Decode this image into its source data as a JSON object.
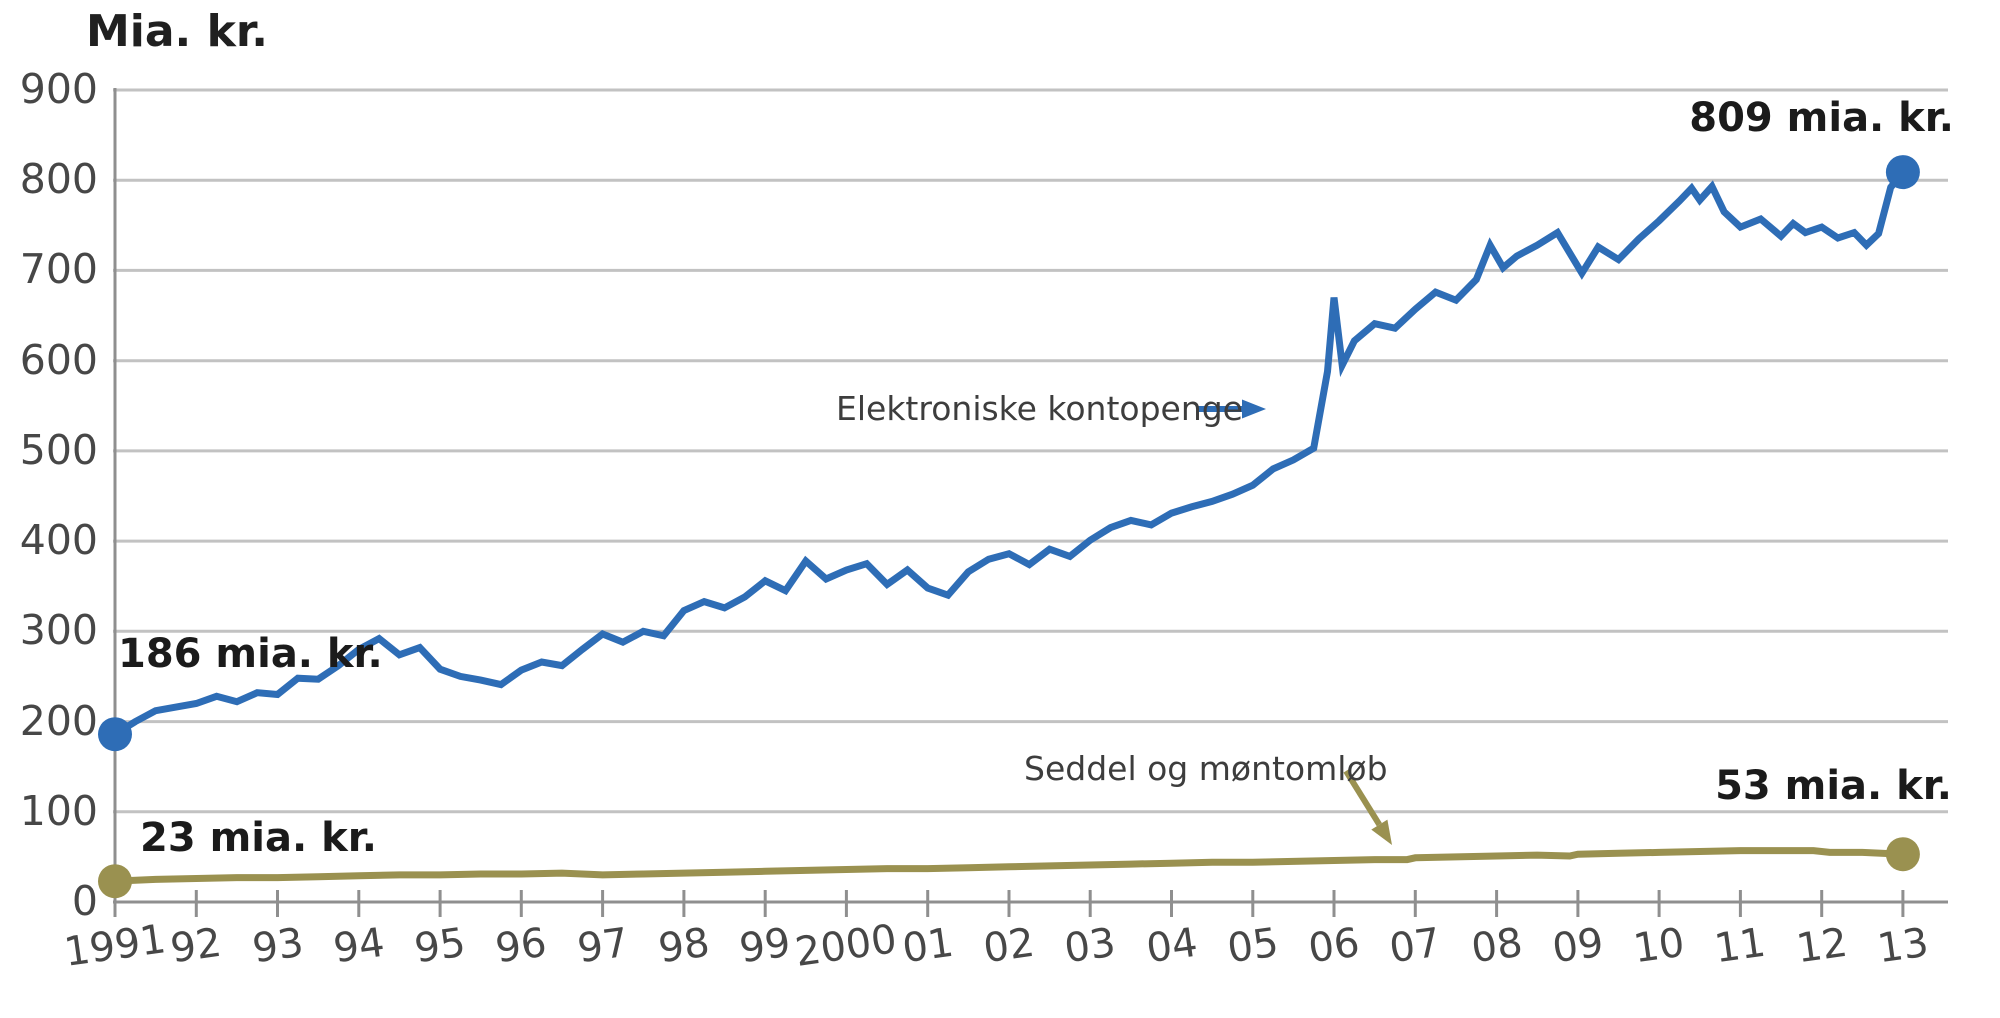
{
  "chart_data": {
    "type": "line",
    "title": "Mia. kr.",
    "ylabel": "Mia. kr.",
    "xlabel": "",
    "ylim": [
      0,
      900
    ],
    "grid": true,
    "legend_position": "inline-annotations",
    "yticks": [
      0,
      100,
      200,
      300,
      400,
      500,
      600,
      700,
      800,
      900
    ],
    "xticks": [
      {
        "label": "1991",
        "year": 1991
      },
      {
        "label": "92",
        "year": 1992
      },
      {
        "label": "93",
        "year": 1993
      },
      {
        "label": "94",
        "year": 1994
      },
      {
        "label": "95",
        "year": 1995
      },
      {
        "label": "96",
        "year": 1996
      },
      {
        "label": "97",
        "year": 1997
      },
      {
        "label": "98",
        "year": 1998
      },
      {
        "label": "99",
        "year": 1999
      },
      {
        "label": "2000",
        "year": 2000
      },
      {
        "label": "01",
        "year": 2001
      },
      {
        "label": "02",
        "year": 2002
      },
      {
        "label": "03",
        "year": 2003
      },
      {
        "label": "04",
        "year": 2004
      },
      {
        "label": "05",
        "year": 2005
      },
      {
        "label": "06",
        "year": 2006
      },
      {
        "label": "07",
        "year": 2007
      },
      {
        "label": "08",
        "year": 2008
      },
      {
        "label": "09",
        "year": 2009
      },
      {
        "label": "10",
        "year": 2010
      },
      {
        "label": "11",
        "year": 2011
      },
      {
        "label": "12",
        "year": 2012
      },
      {
        "label": "13",
        "year": 2013
      }
    ],
    "annotations": {
      "blue_start": "186 mia. kr.",
      "blue_end": "809 mia. kr.",
      "olive_start": "23 mia. kr.",
      "olive_end": "53 mia. kr.",
      "blue_series_label": "Elektroniske kontopenge",
      "olive_series_label": "Seddel og møntomløb"
    },
    "colors": {
      "blue": "#2e6db6",
      "olive": "#9a9150",
      "grid": "#c2c2c2",
      "axis": "#8f8f8f",
      "tick_text": "#474747",
      "annotation_text": "#1b1b1b"
    },
    "series": [
      {
        "id": "elektroniske-kontopenge",
        "name": "Elektroniske kontopenge",
        "color": "#2e6db6",
        "start_value": 186,
        "end_value": 809,
        "x": [
          1991,
          1991.25,
          1991.5,
          1991.75,
          1992,
          1992.25,
          1992.5,
          1992.75,
          1993,
          1993.25,
          1993.5,
          1993.75,
          1994,
          1994.25,
          1994.5,
          1994.75,
          1995,
          1995.25,
          1995.5,
          1995.75,
          1996,
          1996.25,
          1996.5,
          1996.75,
          1997,
          1997.25,
          1997.5,
          1997.75,
          1998,
          1998.25,
          1998.5,
          1998.75,
          1999,
          1999.25,
          1999.5,
          1999.75,
          2000,
          2000.25,
          2000.5,
          2000.75,
          2001,
          2001.25,
          2001.5,
          2001.75,
          2002,
          2002.25,
          2002.5,
          2002.75,
          2003,
          2003.25,
          2003.5,
          2003.75,
          2004,
          2004.25,
          2004.5,
          2004.75,
          2005,
          2005.25,
          2005.5,
          2005.75,
          2005.92,
          2006,
          2006.1,
          2006.25,
          2006.5,
          2006.75,
          2007,
          2007.25,
          2007.5,
          2007.75,
          2007.92,
          2008.08,
          2008.25,
          2008.5,
          2008.75,
          2009.05,
          2009.25,
          2009.5,
          2009.75,
          2010,
          2010.25,
          2010.4,
          2010.5,
          2010.65,
          2010.8,
          2011,
          2011.25,
          2011.5,
          2011.65,
          2011.8,
          2012,
          2012.2,
          2012.4,
          2012.55,
          2012.7,
          2012.85,
          2013
        ],
        "values": [
          186,
          200,
          212,
          216,
          220,
          228,
          222,
          232,
          230,
          248,
          247,
          262,
          280,
          292,
          274,
          282,
          258,
          250,
          246,
          241,
          257,
          266,
          262,
          280,
          297,
          288,
          300,
          295,
          323,
          333,
          326,
          338,
          356,
          345,
          378,
          358,
          368,
          375,
          352,
          368,
          348,
          340,
          366,
          380,
          386,
          374,
          391,
          383,
          401,
          415,
          423,
          418,
          431,
          438,
          444,
          452,
          462,
          480,
          490,
          503,
          588,
          670,
          595,
          622,
          641,
          636,
          657,
          676,
          667,
          690,
          728,
          703,
          716,
          728,
          742,
          697,
          726,
          712,
          735,
          755,
          777,
          791,
          778,
          793,
          765,
          748,
          757,
          738,
          752,
          742,
          748,
          736,
          742,
          728,
          741,
          792,
          809
        ]
      },
      {
        "id": "seddel-og-montomlob",
        "name": "Seddel og møntomløb",
        "color": "#9a9150",
        "start_value": 23,
        "end_value": 53,
        "x": [
          1991,
          1991.5,
          1992,
          1992.5,
          1993,
          1993.5,
          1994,
          1994.5,
          1995,
          1995.5,
          1996,
          1996.5,
          1997,
          1997.5,
          1998,
          1998.5,
          1999,
          1999.5,
          2000,
          2000.5,
          2001,
          2001.5,
          2002,
          2002.5,
          2003,
          2003.5,
          2004,
          2004.5,
          2005,
          2005.5,
          2006,
          2006.5,
          2006.9,
          2007,
          2007.5,
          2008,
          2008.5,
          2008.9,
          2009,
          2009.5,
          2010,
          2010.5,
          2011,
          2011.5,
          2011.9,
          2012.1,
          2012.5,
          2013
        ],
        "values": [
          23,
          25,
          26,
          27,
          27,
          28,
          29,
          30,
          30,
          31,
          31,
          32,
          30,
          31,
          32,
          33,
          34,
          35,
          36,
          37,
          37,
          38,
          39,
          40,
          41,
          42,
          43,
          44,
          44,
          45,
          46,
          47,
          47,
          49,
          50,
          51,
          52,
          51,
          53,
          54,
          55,
          56,
          57,
          57,
          57,
          55,
          55,
          53
        ]
      }
    ]
  }
}
